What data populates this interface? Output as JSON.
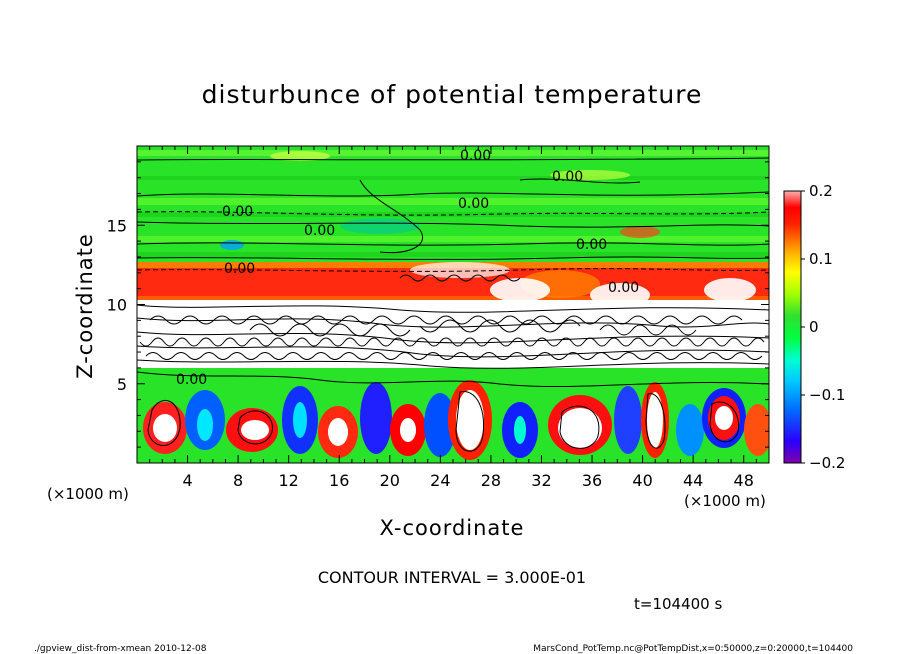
{
  "chart_data": {
    "type": "heatmap",
    "title": "disturbunce of potential temperature",
    "xlabel": "X-coordinate",
    "ylabel": "Z-coordinate",
    "x_unit": "(×1000 m)",
    "y_unit": "(×1000 m)",
    "xlim": [
      0,
      50
    ],
    "ylim": [
      0,
      20
    ],
    "x_ticks": [
      4,
      8,
      12,
      16,
      20,
      24,
      28,
      32,
      36,
      40,
      44,
      48
    ],
    "y_ticks": [
      5,
      10,
      15
    ],
    "colorbar": {
      "range": [
        -0.2,
        0.2
      ],
      "tick_values": [
        0.2,
        0.1,
        0,
        -0.1,
        -0.2
      ],
      "tick_labels": [
        "0.2",
        "0.1",
        "0",
        "−0.1",
        "−0.2"
      ],
      "colors": [
        "#7f00a8",
        "#2b00ff",
        "#0070ff",
        "#00c8ff",
        "#00ffd0",
        "#00ff40",
        "#30e030",
        "#a0ff00",
        "#ffff00",
        "#ffc000",
        "#ff7000",
        "#ff2000",
        "#ff0000",
        "#ff7070"
      ]
    },
    "contour_labels": [
      "0.00",
      "0.00",
      "0.00",
      "0.00",
      "0.00",
      "0.00",
      "0.00",
      "0.00",
      "0.00"
    ],
    "contour_interval": "CONTOUR INTERVAL = 3.000E-01",
    "time": "t=104400 s"
  },
  "footer": {
    "left": "./gpview_dist-from-xmean  2010-12-08",
    "right": "MarsCond_PotTemp.nc@PotTempDist,x=0:50000,z=0:20000,t=104400"
  },
  "colors": {
    "green": "#29e329",
    "red": "#ff2a10",
    "white": "#ffffff",
    "frame": "#000000"
  }
}
